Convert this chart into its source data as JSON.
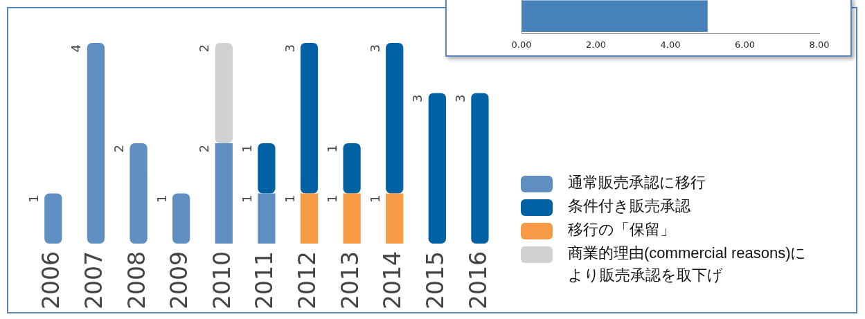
{
  "chart_data": [
    {
      "type": "bar",
      "stacked": true,
      "categories": [
        "2006",
        "2007",
        "2008",
        "2009",
        "2010",
        "2011",
        "2012",
        "2013",
        "2014",
        "2015",
        "2016"
      ],
      "series": [
        {
          "name": "通常販売承認に移行",
          "color": "#5f8fc1",
          "values": [
            1,
            4,
            2,
            1,
            2,
            1,
            null,
            null,
            null,
            null,
            null
          ]
        },
        {
          "name": "移行の「保留」",
          "color": "#f79a46",
          "values": [
            null,
            null,
            null,
            null,
            null,
            null,
            1,
            1,
            1,
            null,
            null
          ]
        },
        {
          "name": "条件付き販売承認",
          "color": "#0061a3",
          "values": [
            null,
            null,
            null,
            null,
            null,
            1,
            3,
            1,
            3,
            3,
            3
          ]
        },
        {
          "name": "商業的理由(commercial reasons)により販売承認を取下げ",
          "color": "#d0d1d3",
          "values": [
            null,
            null,
            null,
            null,
            2,
            null,
            null,
            null,
            null,
            null,
            null
          ]
        }
      ],
      "data_labels": true,
      "tick_labels": "x",
      "grid": false,
      "legend": "bottom right"
    },
    {
      "type": "bar",
      "orientation": "horizontal",
      "categories": [
        null
      ],
      "values": [
        5
      ],
      "color": "#4682b8",
      "xlim": [
        0,
        8
      ],
      "xticks": [
        {
          "value": 0,
          "label": "0.00"
        },
        {
          "value": 2,
          "label": "2.00"
        },
        {
          "value": 4,
          "label": "4.00"
        },
        {
          "value": 6,
          "label": "6.00"
        },
        {
          "value": 8,
          "label": "8.00"
        }
      ],
      "tick_labels": "x",
      "grid": false
    }
  ]
}
